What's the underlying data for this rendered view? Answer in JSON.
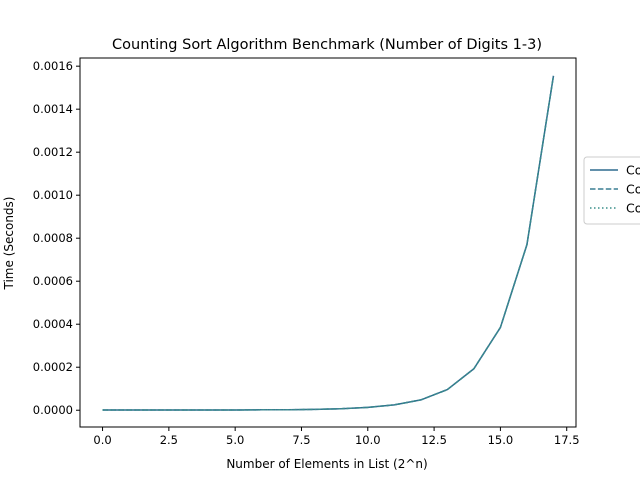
{
  "chart_data": {
    "type": "line",
    "title": "Counting Sort Algorithm Benchmark (Number of Digits 1-3)",
    "xlabel": "Number of Elements in List (2^n)",
    "ylabel": "Time (Seconds)",
    "xlim": [
      -0.85,
      17.85
    ],
    "ylim": [
      -7.8e-05,
      0.001638
    ],
    "xticks": [
      0.0,
      2.5,
      5.0,
      7.5,
      10.0,
      12.5,
      15.0,
      17.5
    ],
    "xtick_labels": [
      "0.0",
      "2.5",
      "5.0",
      "7.5",
      "10.0",
      "12.5",
      "15.0",
      "17.5"
    ],
    "yticks": [
      0.0,
      0.0002,
      0.0004,
      0.0006,
      0.0008,
      0.001,
      0.0012,
      0.0014,
      0.0016
    ],
    "ytick_labels": [
      "0.0000",
      "0.0002",
      "0.0004",
      "0.0006",
      "0.0008",
      "0.0010",
      "0.0012",
      "0.0014",
      "0.0016"
    ],
    "grid": false,
    "legend_position": "center-right (outside plot, clipped)",
    "x": [
      0,
      1,
      2,
      3,
      4,
      5,
      6,
      7,
      8,
      9,
      10,
      11,
      12,
      13,
      14,
      15,
      16,
      17
    ],
    "series": [
      {
        "name": "Co",
        "style": "solid",
        "color": "#2f6b8f",
        "values": [
          1e-06,
          1e-06,
          1e-06,
          1e-06,
          1e-06,
          1e-06,
          2e-06,
          2e-06,
          4e-06,
          7e-06,
          1.3e-05,
          2.5e-05,
          4.8e-05,
          9.6e-05,
          0.000193,
          0.000385,
          0.00077,
          0.001555
        ]
      },
      {
        "name": "Co",
        "style": "dashed",
        "color": "#3a7f93",
        "values": [
          1e-06,
          1e-06,
          1e-06,
          1e-06,
          1e-06,
          1e-06,
          2e-06,
          2e-06,
          4e-06,
          7e-06,
          1.3e-05,
          2.5e-05,
          4.8e-05,
          9.6e-05,
          0.000193,
          0.000385,
          0.00077,
          0.001555
        ]
      },
      {
        "name": "Co",
        "style": "dotted",
        "color": "#3a8f8a",
        "values": [
          1e-06,
          1e-06,
          1e-06,
          1e-06,
          1e-06,
          1e-06,
          2e-06,
          2e-06,
          4e-06,
          7e-06,
          1.3e-05,
          2.5e-05,
          4.8e-05,
          9.6e-05,
          0.000193,
          0.000385,
          0.00077,
          0.001555
        ]
      }
    ]
  }
}
